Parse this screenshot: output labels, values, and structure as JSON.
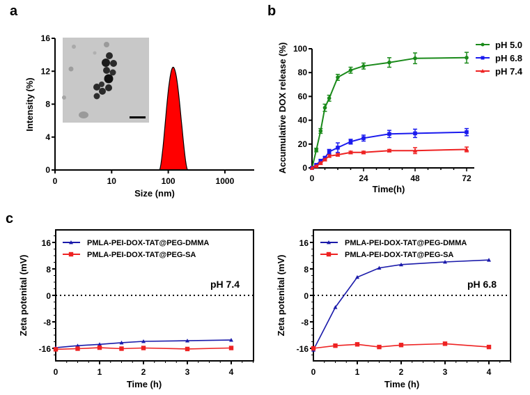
{
  "panels": {
    "a": "a",
    "b": "b",
    "c": "c"
  },
  "chart_data": [
    {
      "id": "a",
      "type": "area",
      "title": "",
      "xlabel": "Size (nm)",
      "ylabel": "Intensity (%)",
      "xscale": "log",
      "xticks": [
        "0",
        "10",
        "100",
        "1000"
      ],
      "yticks": [
        "0",
        "4",
        "8",
        "12",
        "16"
      ],
      "ylim": [
        0,
        16
      ],
      "series": [
        {
          "name": "size distribution",
          "color": "#ff0000",
          "x": [
            70,
            80,
            90,
            100,
            110,
            122,
            135,
            150,
            170,
            195,
            220
          ],
          "y": [
            0,
            2.5,
            6.0,
            9.5,
            11.8,
            12.5,
            11.8,
            9.5,
            5.5,
            2.0,
            0
          ]
        }
      ],
      "inset": {
        "type": "TEM image",
        "scale_bar": true
      }
    },
    {
      "id": "b",
      "type": "line",
      "xlabel": "Time(h)",
      "ylabel": "Accumulative DOX release (%)",
      "xlim": [
        0,
        75
      ],
      "ylim": [
        0,
        100
      ],
      "xticks": [
        "0",
        "24",
        "48",
        "72"
      ],
      "yticks": [
        "0",
        "20",
        "40",
        "60",
        "80",
        "100"
      ],
      "legend_position": "top-right",
      "x": [
        0,
        2,
        4,
        6,
        8,
        12,
        18,
        24,
        36,
        48,
        72
      ],
      "series": [
        {
          "name": "pH 5.0",
          "color": "#1a8a1a",
          "marker": "circle",
          "values": [
            0,
            15,
            31,
            50.5,
            58.5,
            76,
            82,
            85.5,
            88.5,
            92,
            92.5
          ],
          "errors": [
            0,
            1.5,
            2,
            3,
            2.5,
            2.5,
            2.5,
            2.5,
            4,
            4.5,
            4.5
          ]
        },
        {
          "name": "pH 6.8",
          "color": "#1a1aee",
          "marker": "square",
          "values": [
            0,
            2.5,
            6,
            8.5,
            13.5,
            17,
            22,
            25,
            28.5,
            29,
            30
          ],
          "errors": [
            0,
            0.5,
            1,
            1,
            2,
            4,
            2,
            2.5,
            3,
            3.5,
            3
          ]
        },
        {
          "name": "pH 7.4",
          "color": "#ee2222",
          "marker": "triangle",
          "values": [
            0,
            1.5,
            4,
            7,
            10,
            11,
            13,
            13,
            14.5,
            14.5,
            15.5
          ],
          "errors": [
            0,
            0.5,
            0.5,
            0.5,
            1,
            1,
            1,
            1,
            1,
            2.5,
            2
          ]
        }
      ]
    },
    {
      "id": "c-left",
      "type": "line",
      "xlabel": "Time (h)",
      "ylabel": "Zeta potenital (mV)",
      "xlim": [
        0,
        4.5
      ],
      "ylim": [
        -20,
        20
      ],
      "xticks": [
        "0",
        "1",
        "2",
        "3",
        "4"
      ],
      "yticks": [
        "16",
        "8",
        "0",
        "-8",
        "-16"
      ],
      "annotation": "pH 7.4",
      "reference_line": 0,
      "legend_position": "top-left",
      "x": [
        0,
        0.5,
        1,
        1.5,
        2,
        3,
        4
      ],
      "series": [
        {
          "name": "PMLA-PEI-DOX-TAT@PEG-DMMA",
          "color": "#1a1aaa",
          "marker": "triangle",
          "values": [
            -15.8,
            -15.2,
            -14.8,
            -14.3,
            -13.9,
            -13.7,
            -13.5
          ]
        },
        {
          "name": "PMLA-PEI-DOX-TAT@PEG-SA",
          "color": "#ee2222",
          "marker": "square",
          "values": [
            -16.3,
            -16.1,
            -15.8,
            -16.1,
            -15.9,
            -16.2,
            -15.9
          ]
        }
      ]
    },
    {
      "id": "c-right",
      "type": "line",
      "xlabel": "Time (h)",
      "ylabel": "Zeta potenital (mV)",
      "xlim": [
        0,
        4.5
      ],
      "ylim": [
        -20,
        20
      ],
      "xticks": [
        "0",
        "1",
        "2",
        "3",
        "4"
      ],
      "yticks": [
        "16",
        "8",
        "0",
        "-8",
        "-16"
      ],
      "annotation": "pH 6.8",
      "reference_line": 0,
      "legend_position": "top-left",
      "x": [
        0,
        0.5,
        1,
        1.5,
        2,
        3,
        4
      ],
      "series": [
        {
          "name": "PMLA-PEI-DOX-TAT@PEG-DMMA",
          "color": "#1a1aaa",
          "marker": "triangle",
          "values": [
            -16.5,
            -3.6,
            5.5,
            8.3,
            9.3,
            10.1,
            10.7
          ]
        },
        {
          "name": "PMLA-PEI-DOX-TAT@PEG-SA",
          "color": "#ee2222",
          "marker": "square",
          "values": [
            -16.0,
            -15.2,
            -14.8,
            -15.6,
            -15.0,
            -14.6,
            -15.6
          ]
        }
      ]
    }
  ]
}
